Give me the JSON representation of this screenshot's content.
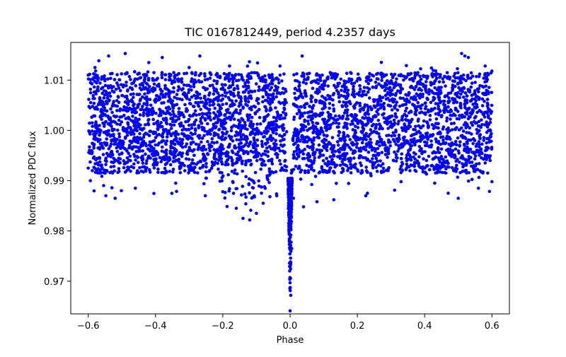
{
  "chart_data": {
    "type": "scatter",
    "title": "TIC 0167812449, period 4.2357 days",
    "xlabel": "Phase",
    "ylabel": "Normalized PDC flux",
    "xlim": [
      -0.652,
      0.652
    ],
    "ylim": [
      0.9635,
      1.0175
    ],
    "xticks": [
      -0.6,
      -0.4,
      -0.2,
      0.0,
      0.2,
      0.4,
      0.6
    ],
    "xtick_labels": [
      "−0.6",
      "−0.4",
      "−0.2",
      "0.0",
      "0.2",
      "0.4",
      "0.6"
    ],
    "yticks": [
      0.97,
      0.98,
      0.99,
      1.0,
      1.01
    ],
    "ytick_labels": [
      "0.97",
      "0.98",
      "0.99",
      "1.00",
      "1.01"
    ],
    "grid": false,
    "marker_color": "#0000ff",
    "series": [
      {
        "name": "PDC flux",
        "description": "dense phase-folded light curve with central transit dip at phase 0",
        "phase_range": [
          -0.6,
          0.6
        ],
        "baseline_flux": 1.0,
        "baseline_scatter_range": [
          0.9915,
          1.0115
        ],
        "transit_center_phase": 0.0,
        "transit_min_flux": 0.9641,
        "secondary_feature_phase": -0.13,
        "secondary_feature_min_flux": 0.9822,
        "sample_points": [
          [
            -0.6,
            0.9925
          ],
          [
            -0.6,
            1.011
          ],
          [
            -0.58,
            1.0125
          ],
          [
            -0.55,
            0.9915
          ],
          [
            -0.52,
            0.9865
          ],
          [
            -0.49,
            1.0153
          ],
          [
            -0.46,
            0.9885
          ],
          [
            -0.42,
            1.0135
          ],
          [
            -0.38,
            1.0145
          ],
          [
            -0.34,
            0.9895
          ],
          [
            -0.3,
            1.0125
          ],
          [
            -0.25,
            0.9905
          ],
          [
            -0.2,
            0.9878
          ],
          [
            -0.18,
            1.0128
          ],
          [
            -0.16,
            0.9845
          ],
          [
            -0.14,
            0.9825
          ],
          [
            -0.12,
            0.9822
          ],
          [
            -0.1,
            0.9835
          ],
          [
            -0.08,
            0.9855
          ],
          [
            -0.06,
            0.9868
          ],
          [
            -0.03,
            1.0128
          ],
          [
            -0.005,
            0.9845
          ],
          [
            0.0,
            0.9641
          ],
          [
            0.002,
            0.9672
          ],
          [
            0.005,
            0.9765
          ],
          [
            0.01,
            0.9865
          ],
          [
            0.04,
            0.9848
          ],
          [
            0.08,
            0.9858
          ],
          [
            0.13,
            0.9862
          ],
          [
            0.18,
            1.0115
          ],
          [
            0.23,
            0.9875
          ],
          [
            0.28,
            1.0108
          ],
          [
            0.33,
            0.9898
          ],
          [
            0.38,
            1.0115
          ],
          [
            0.43,
            0.9895
          ],
          [
            0.47,
            0.9875
          ],
          [
            0.5,
            0.9865
          ],
          [
            0.51,
            1.0153
          ],
          [
            0.53,
            1.0145
          ],
          [
            0.56,
            0.9885
          ],
          [
            0.58,
            1.0128
          ],
          [
            0.6,
            0.9898
          ],
          [
            0.6,
            1.0118
          ]
        ]
      }
    ]
  }
}
